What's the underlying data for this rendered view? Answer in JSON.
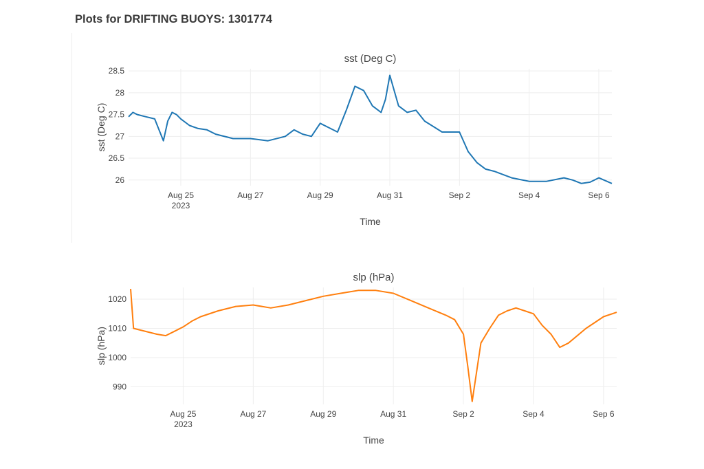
{
  "page": {
    "heading": "Plots for DRIFTING BUOYS: 1301774"
  },
  "chart_data": [
    {
      "type": "line",
      "title": "sst (Deg C)",
      "xlabel": "Time",
      "ylabel": "sst (Deg C)",
      "x_ticks": [
        {
          "date": "2023-08-25",
          "label": "Aug 25",
          "sublabel": "2023"
        },
        {
          "date": "2023-08-27",
          "label": "Aug 27"
        },
        {
          "date": "2023-08-29",
          "label": "Aug 29"
        },
        {
          "date": "2023-08-31",
          "label": "Aug 31"
        },
        {
          "date": "2023-09-02",
          "label": "Sep 2"
        },
        {
          "date": "2023-09-04",
          "label": "Sep 4"
        },
        {
          "date": "2023-09-06",
          "label": "Sep 6"
        }
      ],
      "y_ticks": [
        {
          "value": 26,
          "label": "26"
        },
        {
          "value": 26.5,
          "label": "26.5"
        },
        {
          "value": 27,
          "label": "27"
        },
        {
          "value": 27.5,
          "label": "27.5"
        },
        {
          "value": 28,
          "label": "28"
        },
        {
          "value": 28.5,
          "label": "28.5"
        }
      ],
      "xlim": [
        "2023-08-23T12:00",
        "2023-09-06T09:00"
      ],
      "ylim": [
        25.87,
        28.55
      ],
      "grid": true,
      "series": [
        {
          "color": "#1f77b4",
          "x": [
            "2023-08-23T12:00",
            "2023-08-23T15:00",
            "2023-08-23T18:00",
            "2023-08-24T00:00",
            "2023-08-24T06:00",
            "2023-08-24T09:00",
            "2023-08-24T12:00",
            "2023-08-24T15:00",
            "2023-08-24T18:00",
            "2023-08-24T21:00",
            "2023-08-25T00:00",
            "2023-08-25T06:00",
            "2023-08-25T12:00",
            "2023-08-25T18:00",
            "2023-08-26T00:00",
            "2023-08-26T12:00",
            "2023-08-27T00:00",
            "2023-08-27T12:00",
            "2023-08-28T00:00",
            "2023-08-28T06:00",
            "2023-08-28T12:00",
            "2023-08-28T18:00",
            "2023-08-29T00:00",
            "2023-08-29T06:00",
            "2023-08-29T12:00",
            "2023-08-29T18:00",
            "2023-08-30T00:00",
            "2023-08-30T06:00",
            "2023-08-30T12:00",
            "2023-08-30T18:00",
            "2023-08-30T21:00",
            "2023-08-31T00:00",
            "2023-08-31T06:00",
            "2023-08-31T12:00",
            "2023-08-31T18:00",
            "2023-09-01T00:00",
            "2023-09-01T12:00",
            "2023-09-02T00:00",
            "2023-09-02T06:00",
            "2023-09-02T12:00",
            "2023-09-02T18:00",
            "2023-09-03T00:00",
            "2023-09-03T12:00",
            "2023-09-04T00:00",
            "2023-09-04T12:00",
            "2023-09-05T00:00",
            "2023-09-05T06:00",
            "2023-09-05T12:00",
            "2023-09-05T18:00",
            "2023-09-06T00:00",
            "2023-09-06T09:00"
          ],
          "y": [
            27.45,
            27.55,
            27.5,
            27.45,
            27.4,
            27.15,
            26.9,
            27.35,
            27.55,
            27.5,
            27.4,
            27.25,
            27.18,
            27.15,
            27.05,
            26.95,
            26.95,
            26.9,
            27.0,
            27.15,
            27.05,
            27.0,
            27.3,
            27.2,
            27.1,
            27.6,
            28.15,
            28.05,
            27.7,
            27.55,
            27.85,
            28.4,
            27.7,
            27.55,
            27.6,
            27.35,
            27.1,
            27.1,
            26.65,
            26.4,
            26.25,
            26.2,
            26.05,
            25.97,
            25.97,
            26.05,
            26.0,
            25.92,
            25.95,
            26.05,
            25.92
          ]
        }
      ]
    },
    {
      "type": "line",
      "title": "slp (hPa)",
      "xlabel": "Time",
      "ylabel": "slp (hPa)",
      "x_ticks": [
        {
          "date": "2023-08-25",
          "label": "Aug 25",
          "sublabel": "2023"
        },
        {
          "date": "2023-08-27",
          "label": "Aug 27"
        },
        {
          "date": "2023-08-29",
          "label": "Aug 29"
        },
        {
          "date": "2023-08-31",
          "label": "Aug 31"
        },
        {
          "date": "2023-09-02",
          "label": "Sep 2"
        },
        {
          "date": "2023-09-04",
          "label": "Sep 4"
        },
        {
          "date": "2023-09-06",
          "label": "Sep 6"
        }
      ],
      "y_ticks": [
        {
          "value": 990,
          "label": "990"
        },
        {
          "value": 1000,
          "label": "1000"
        },
        {
          "value": 1010,
          "label": "1010"
        },
        {
          "value": 1020,
          "label": "1020"
        }
      ],
      "xlim": [
        "2023-08-23T12:00",
        "2023-09-06T09:00"
      ],
      "ylim": [
        984,
        1024
      ],
      "grid": true,
      "series": [
        {
          "color": "#ff7f0e",
          "x": [
            "2023-08-23T12:00",
            "2023-08-23T14:00",
            "2023-08-23T18:00",
            "2023-08-24T06:00",
            "2023-08-24T12:00",
            "2023-08-24T18:00",
            "2023-08-25T00:00",
            "2023-08-25T06:00",
            "2023-08-25T12:00",
            "2023-08-26T00:00",
            "2023-08-26T12:00",
            "2023-08-27T00:00",
            "2023-08-27T12:00",
            "2023-08-28T00:00",
            "2023-08-28T12:00",
            "2023-08-29T00:00",
            "2023-08-29T12:00",
            "2023-08-30T00:00",
            "2023-08-30T12:00",
            "2023-08-31T00:00",
            "2023-08-31T12:00",
            "2023-09-01T00:00",
            "2023-09-01T12:00",
            "2023-09-01T18:00",
            "2023-09-02T00:00",
            "2023-09-02T03:00",
            "2023-09-02T06:00",
            "2023-09-02T12:00",
            "2023-09-02T18:00",
            "2023-09-03T00:00",
            "2023-09-03T06:00",
            "2023-09-03T12:00",
            "2023-09-03T18:00",
            "2023-09-04T00:00",
            "2023-09-04T06:00",
            "2023-09-04T12:00",
            "2023-09-04T18:00",
            "2023-09-05T00:00",
            "2023-09-05T12:00",
            "2023-09-05T18:00",
            "2023-09-06T00:00",
            "2023-09-06T09:00"
          ],
          "y": [
            1023.5,
            1010,
            1009.5,
            1008,
            1007.5,
            1009,
            1010.5,
            1012.5,
            1014,
            1016,
            1017.5,
            1018,
            1017,
            1018,
            1019.5,
            1021,
            1022,
            1023,
            1023,
            1022,
            1019.5,
            1017,
            1014.5,
            1013,
            1008,
            997,
            985,
            1005,
            1010,
            1014.5,
            1016,
            1017,
            1016,
            1015,
            1011,
            1008,
            1003.5,
            1005,
            1010,
            1012,
            1014,
            1015.5
          ]
        }
      ]
    }
  ]
}
